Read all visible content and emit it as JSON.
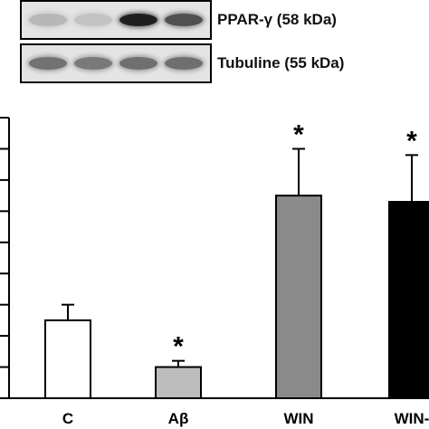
{
  "blots": [
    {
      "label": "PPAR-γ (58 kDa)",
      "intensities": [
        0.3,
        0.22,
        0.95,
        0.78
      ]
    },
    {
      "label": "Tubuline (55 kDa)",
      "intensities": [
        0.65,
        0.62,
        0.66,
        0.66
      ]
    }
  ],
  "chart_data": {
    "type": "bar",
    "categories": [
      "C",
      "Aβ",
      "WIN",
      "WIN-"
    ],
    "values": [
      2.5,
      1.0,
      6.5,
      6.3
    ],
    "errors": [
      0.5,
      0.2,
      1.5,
      1.5
    ],
    "significance": [
      "",
      "*",
      "*",
      "*"
    ],
    "colors": [
      "#ffffff",
      "#bdbdbd",
      "#8a8a8a",
      "#000000"
    ],
    "ylim": [
      0,
      9
    ],
    "y_minor_ticks": 9,
    "title": "",
    "xlabel": "",
    "ylabel": ""
  }
}
